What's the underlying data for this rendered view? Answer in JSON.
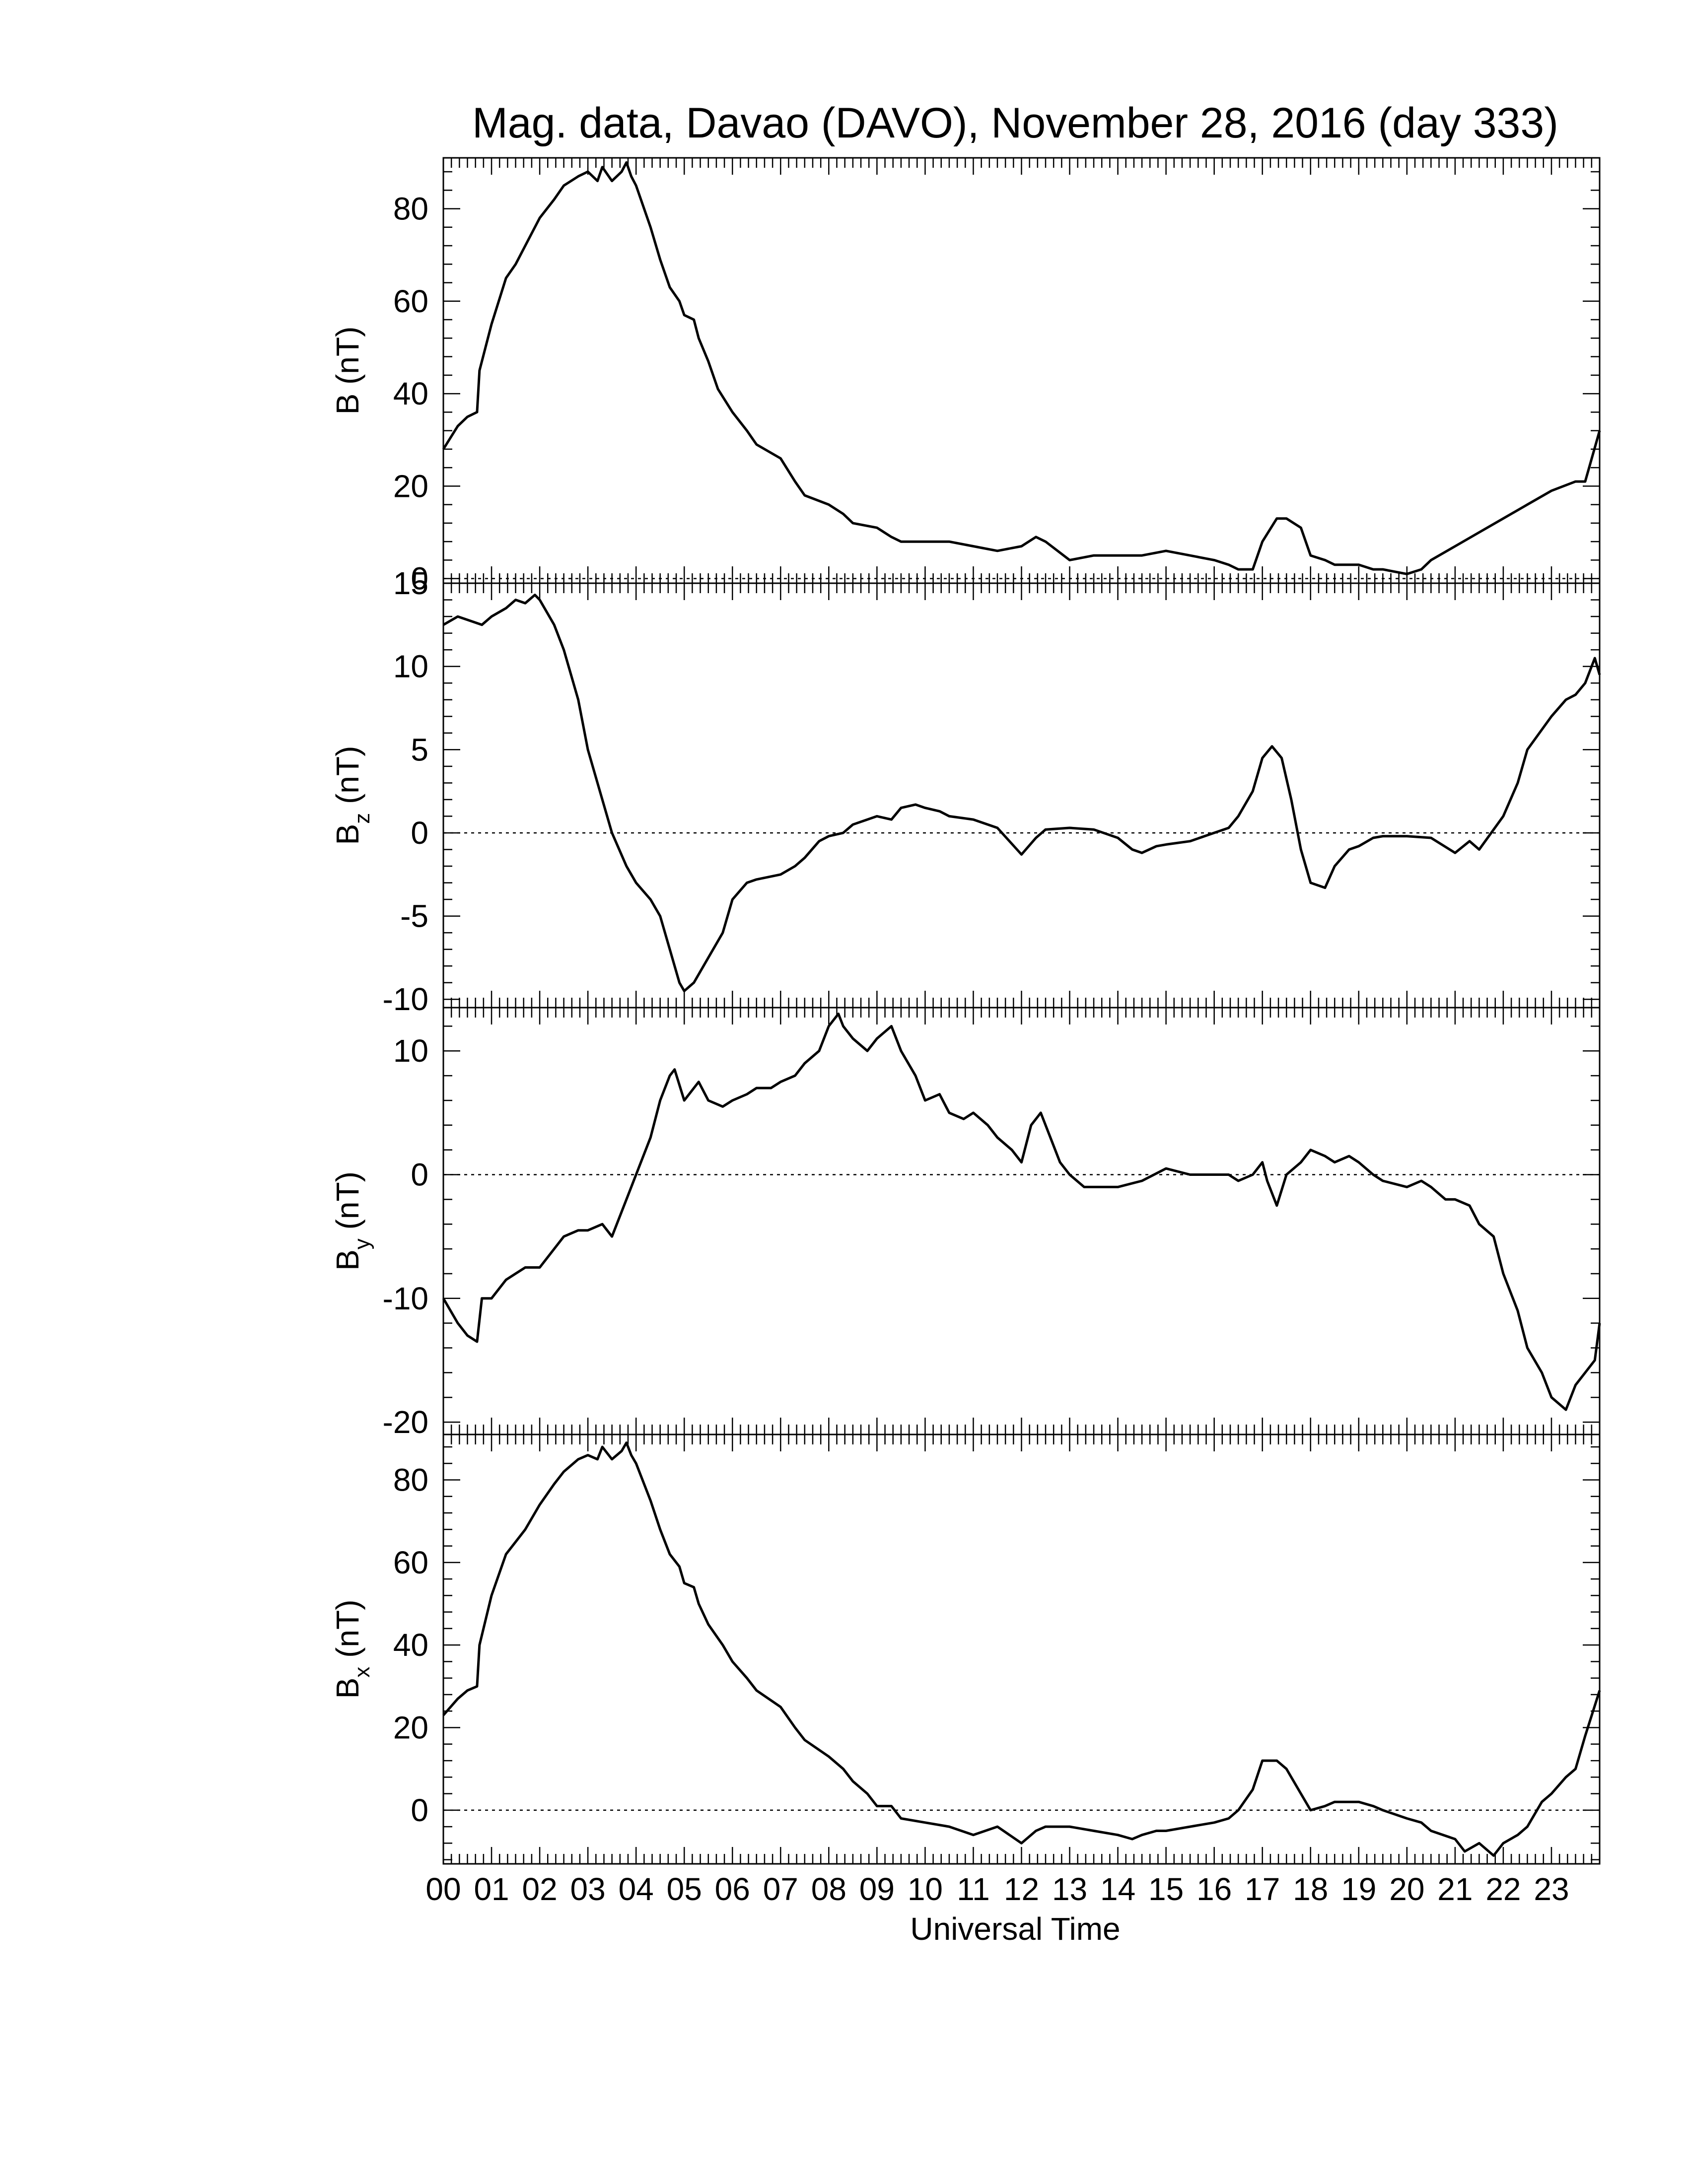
{
  "chart_data": {
    "type": "line",
    "title": "Mag. data, Davao (DAVO), November 28, 2016 (day 333)",
    "xlabel": "Universal Time",
    "x_unit": "hours UT",
    "x_tick_labels": [
      "00",
      "01",
      "02",
      "03",
      "04",
      "05",
      "06",
      "07",
      "08",
      "09",
      "10",
      "11",
      "12",
      "13",
      "14",
      "15",
      "16",
      "17",
      "18",
      "19",
      "20",
      "21",
      "22",
      "23"
    ],
    "xlim": [
      0,
      24
    ],
    "line_color": "#000000",
    "zero_reference": "dotted line at 0",
    "panels": [
      {
        "ylabel_main": "B",
        "ylabel_sub": "",
        "ylabel_unit": "(nT)",
        "ylim": [
          -1,
          91
        ],
        "yticks": [
          0,
          20,
          40,
          60,
          80
        ],
        "series": [
          {
            "x": [
              0,
              0.3,
              0.5,
              0.7,
              0.75,
              1,
              1.3,
              1.5,
              1.7,
              2,
              2.3,
              2.5,
              2.8,
              3,
              3.2,
              3.3,
              3.5,
              3.7,
              3.8,
              3.9,
              4,
              4.3,
              4.5,
              4.7,
              4.9,
              5,
              5.2,
              5.3,
              5.5,
              5.7,
              6,
              6.3,
              6.5,
              7,
              7.3,
              7.5,
              8,
              8.3,
              8.5,
              9,
              9.3,
              9.5,
              10,
              10.5,
              11,
              11.5,
              12,
              12.3,
              12.5,
              13,
              13.5,
              14,
              14.5,
              15,
              15.5,
              16,
              16.3,
              16.5,
              16.8,
              17,
              17.3,
              17.5,
              17.8,
              18,
              18.3,
              18.5,
              19,
              19.3,
              19.5,
              20,
              20.3,
              20.5,
              21,
              21.5,
              22,
              22.5,
              23,
              23.5,
              23.7,
              24
            ],
            "y": [
              28,
              33,
              35,
              36,
              45,
              55,
              65,
              68,
              72,
              78,
              82,
              85,
              87,
              88,
              86,
              89,
              86,
              88,
              90,
              87,
              85,
              76,
              69,
              63,
              60,
              57,
              56,
              52,
              47,
              41,
              36,
              32,
              29,
              26,
              21,
              18,
              16,
              14,
              12,
              11,
              9,
              8,
              8,
              8,
              7,
              6,
              7,
              9,
              8,
              4,
              5,
              5,
              5,
              6,
              5,
              4,
              3,
              2,
              2,
              8,
              13,
              13,
              11,
              5,
              4,
              3,
              3,
              2,
              2,
              1,
              2,
              4,
              7,
              10,
              13,
              16,
              19,
              21,
              21,
              32
            ]
          }
        ]
      },
      {
        "ylabel_main": "B",
        "ylabel_sub": "z",
        "ylabel_unit": "(nT)",
        "ylim": [
          -10.5,
          15
        ],
        "yticks": [
          -10,
          -5,
          0,
          5,
          10,
          15
        ],
        "series": [
          {
            "x": [
              0,
              0.3,
              0.5,
              0.8,
              1,
              1.3,
              1.5,
              1.7,
              1.9,
              2,
              2.3,
              2.5,
              2.8,
              3,
              3.3,
              3.5,
              3.8,
              4,
              4.3,
              4.5,
              4.7,
              4.9,
              5,
              5.2,
              5.5,
              5.8,
              6,
              6.3,
              6.5,
              7,
              7.3,
              7.5,
              7.8,
              8,
              8.3,
              8.5,
              8.8,
              9,
              9.3,
              9.5,
              9.8,
              10,
              10.3,
              10.5,
              11,
              11.5,
              12,
              12.3,
              12.5,
              13,
              13.5,
              14,
              14.3,
              14.5,
              14.8,
              15,
              15.5,
              16,
              16.3,
              16.5,
              16.8,
              17,
              17.2,
              17.4,
              17.6,
              17.8,
              18,
              18.3,
              18.5,
              18.8,
              19,
              19.3,
              19.5,
              20,
              20.5,
              21,
              21.3,
              21.5,
              22,
              22.3,
              22.5,
              23,
              23.3,
              23.5,
              23.7,
              23.9,
              24
            ],
            "y": [
              12.5,
              13,
              12.8,
              12.5,
              13,
              13.5,
              14,
              13.8,
              14.3,
              14,
              12.5,
              11,
              8,
              5,
              2,
              0,
              -2,
              -3,
              -4,
              -5,
              -7,
              -9,
              -9.5,
              -9,
              -7.5,
              -6,
              -4,
              -3,
              -2.8,
              -2.5,
              -2,
              -1.5,
              -0.5,
              -0.2,
              0,
              0.5,
              0.8,
              1,
              0.8,
              1.5,
              1.7,
              1.5,
              1.3,
              1,
              0.8,
              0.3,
              -1.3,
              -0.3,
              0.2,
              0.3,
              0.2,
              -0.3,
              -1,
              -1.2,
              -0.8,
              -0.7,
              -0.5,
              0,
              0.3,
              1,
              2.5,
              4.5,
              5.2,
              4.5,
              2,
              -1,
              -3,
              -3.3,
              -2,
              -1,
              -0.8,
              -0.3,
              -0.2,
              -0.2,
              -0.3,
              -1.2,
              -0.5,
              -1,
              1,
              3,
              5,
              7,
              8,
              8.3,
              9,
              10.5,
              9.5
            ]
          }
        ]
      },
      {
        "ylabel_main": "B",
        "ylabel_sub": "y",
        "ylabel_unit": "(nT)",
        "ylim": [
          -21,
          13.5
        ],
        "yticks": [
          -20,
          -10,
          0,
          10
        ],
        "series": [
          {
            "x": [
              0,
              0.3,
              0.5,
              0.7,
              0.8,
              1,
              1.3,
              1.5,
              1.7,
              2,
              2.3,
              2.5,
              2.8,
              3,
              3.3,
              3.5,
              3.8,
              4,
              4.3,
              4.5,
              4.7,
              4.8,
              5,
              5.3,
              5.5,
              5.8,
              6,
              6.3,
              6.5,
              6.8,
              7,
              7.3,
              7.5,
              7.8,
              8,
              8.2,
              8.3,
              8.5,
              8.8,
              9,
              9.3,
              9.5,
              9.8,
              10,
              10.3,
              10.5,
              10.8,
              11,
              11.3,
              11.5,
              11.8,
              12,
              12.2,
              12.4,
              12.6,
              12.8,
              13,
              13.3,
              13.5,
              14,
              14.5,
              15,
              15.5,
              16,
              16.3,
              16.5,
              16.8,
              17,
              17.1,
              17.3,
              17.5,
              17.8,
              18,
              18.3,
              18.5,
              18.8,
              19,
              19.3,
              19.5,
              20,
              20.3,
              20.5,
              20.8,
              21,
              21.3,
              21.5,
              21.8,
              22,
              22.3,
              22.5,
              22.8,
              23,
              23.3,
              23.5,
              23.7,
              23.9,
              24
            ],
            "y": [
              -10,
              -12,
              -13,
              -13.5,
              -10,
              -10,
              -8.5,
              -8,
              -7.5,
              -7.5,
              -6,
              -5,
              -4.5,
              -4.5,
              -4,
              -5,
              -2,
              0,
              3,
              6,
              8,
              8.5,
              6,
              7.5,
              6,
              5.5,
              6,
              6.5,
              7,
              7,
              7.5,
              8,
              9,
              10,
              12,
              13,
              12,
              11,
              10,
              11,
              12,
              10,
              8,
              6,
              6.5,
              5,
              4.5,
              5,
              4,
              3,
              2,
              1,
              4,
              5,
              3,
              1,
              0,
              -1,
              -1,
              -1,
              -0.5,
              0.5,
              0,
              0,
              0,
              -0.5,
              0,
              1,
              -0.5,
              -2.5,
              0,
              1,
              2,
              1.5,
              1,
              1.5,
              1,
              0,
              -0.5,
              -1,
              -0.5,
              -1,
              -2,
              -2,
              -2.5,
              -4,
              -5,
              -8,
              -11,
              -14,
              -16,
              -18,
              -19,
              -17,
              -16,
              -15,
              -12
            ]
          }
        ]
      },
      {
        "ylabel_main": "B",
        "ylabel_sub": "x",
        "ylabel_unit": "(nT)",
        "ylim": [
          -13,
          91
        ],
        "yticks": [
          0,
          20,
          40,
          60,
          80
        ],
        "series": [
          {
            "x": [
              0,
              0.3,
              0.5,
              0.7,
              0.75,
              1,
              1.3,
              1.5,
              1.7,
              2,
              2.3,
              2.5,
              2.8,
              3,
              3.2,
              3.3,
              3.5,
              3.7,
              3.8,
              3.9,
              4,
              4.3,
              4.5,
              4.7,
              4.9,
              5,
              5.2,
              5.3,
              5.5,
              5.8,
              6,
              6.3,
              6.5,
              7,
              7.3,
              7.5,
              8,
              8.3,
              8.5,
              8.8,
              9,
              9.3,
              9.5,
              10,
              10.5,
              11,
              11.5,
              12,
              12.3,
              12.5,
              13,
              13.5,
              14,
              14.3,
              14.5,
              14.8,
              15,
              15.5,
              16,
              16.3,
              16.5,
              16.8,
              17,
              17.3,
              17.5,
              17.8,
              18,
              18.3,
              18.5,
              19,
              19.3,
              19.5,
              20,
              20.3,
              20.5,
              21,
              21.2,
              21.5,
              21.8,
              22,
              22.3,
              22.5,
              22.8,
              23,
              23.3,
              23.5,
              23.7,
              24
            ],
            "y": [
              23,
              27,
              29,
              30,
              40,
              52,
              62,
              65,
              68,
              74,
              79,
              82,
              85,
              86,
              85,
              88,
              85,
              87,
              89,
              86,
              84,
              75,
              68,
              62,
              59,
              55,
              54,
              50,
              45,
              40,
              36,
              32,
              29,
              25,
              20,
              17,
              13,
              10,
              7,
              4,
              1,
              1,
              -2,
              -3,
              -4,
              -6,
              -4,
              -8,
              -5,
              -4,
              -4,
              -5,
              -6,
              -7,
              -6,
              -5,
              -5,
              -4,
              -3,
              -2,
              0,
              5,
              12,
              12,
              10,
              4,
              0,
              1,
              2,
              2,
              1,
              0,
              -2,
              -3,
              -5,
              -7,
              -10,
              -8,
              -11,
              -8,
              -6,
              -4,
              2,
              4,
              8,
              10,
              18,
              29
            ]
          }
        ]
      }
    ]
  }
}
